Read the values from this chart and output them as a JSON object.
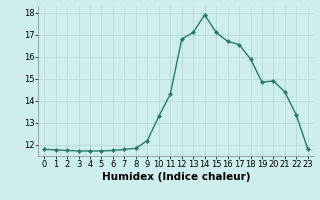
{
  "x": [
    0,
    1,
    2,
    3,
    4,
    5,
    6,
    7,
    8,
    9,
    10,
    11,
    12,
    13,
    14,
    15,
    16,
    17,
    18,
    19,
    20,
    21,
    22,
    23
  ],
  "y": [
    11.8,
    11.78,
    11.75,
    11.73,
    11.73,
    11.73,
    11.75,
    11.8,
    11.85,
    12.2,
    13.3,
    14.3,
    16.8,
    17.1,
    17.9,
    17.1,
    16.7,
    16.55,
    15.9,
    14.85,
    14.9,
    14.4,
    13.35,
    11.8
  ],
  "line_color": "#2a7a6a",
  "marker": "D",
  "marker_size": 2.0,
  "bg_color": "#ceeeed",
  "grid_color": "#b8d8d5",
  "xlabel": "Humidex (Indice chaleur)",
  "ylim": [
    11.5,
    18.3
  ],
  "xlim": [
    -0.5,
    23.5
  ],
  "yticks": [
    12,
    13,
    14,
    15,
    16,
    17,
    18
  ],
  "xticks": [
    0,
    1,
    2,
    3,
    4,
    5,
    6,
    7,
    8,
    9,
    10,
    11,
    12,
    13,
    14,
    15,
    16,
    17,
    18,
    19,
    20,
    21,
    22,
    23
  ],
  "tick_fontsize": 6,
  "xlabel_fontsize": 7.5,
  "xlabel_weight": "bold",
  "line_width": 1.0
}
